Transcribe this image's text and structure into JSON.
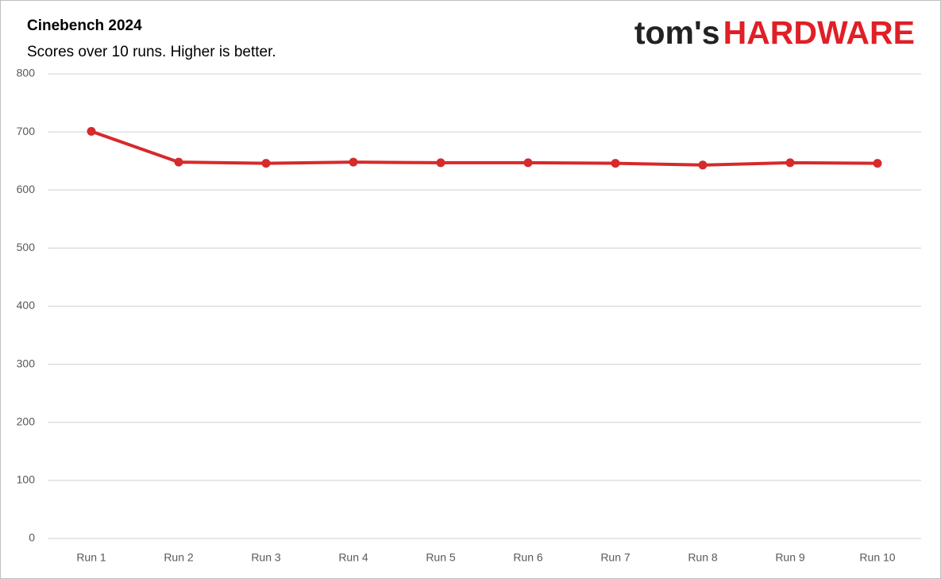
{
  "chart_data": {
    "type": "line",
    "title": "Cinebench 2024",
    "subtitle": "Scores over 10 runs. Higher is better.",
    "logo": {
      "prefix": "tom's",
      "brand": "HARDWARE"
    },
    "categories": [
      "Run 1",
      "Run 2",
      "Run 3",
      "Run 4",
      "Run 5",
      "Run 6",
      "Run 7",
      "Run 8",
      "Run 9",
      "Run 10"
    ],
    "values": [
      701,
      648,
      646,
      648,
      647,
      647,
      646,
      643,
      647,
      646
    ],
    "color": "#d62a2b",
    "ylim": [
      0,
      800
    ],
    "yticks": [
      0,
      100,
      200,
      300,
      400,
      500,
      600,
      700,
      800
    ],
    "grid": true
  }
}
